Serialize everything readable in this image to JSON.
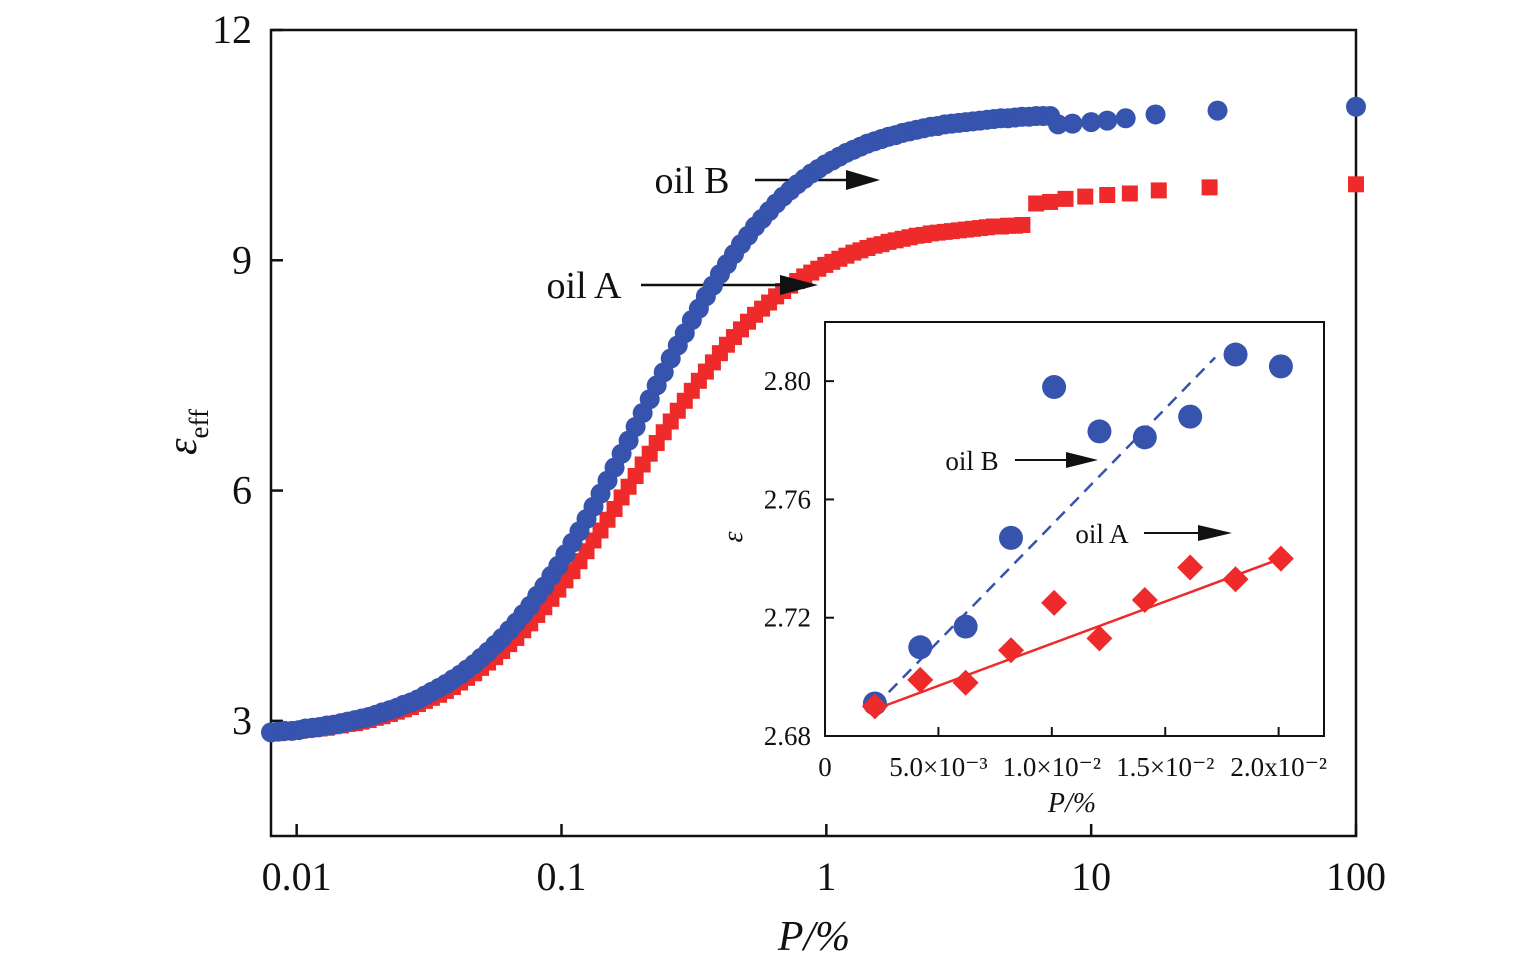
{
  "colors": {
    "oil_A": "#ee2a2a",
    "oil_B": "#3653ad",
    "axis": "#111111"
  },
  "chart_data": [
    {
      "type": "scatter",
      "xscale": "log",
      "xlim": [
        0.008,
        100
      ],
      "ylim": [
        1.5,
        12
      ],
      "xticks": [
        0.01,
        0.1,
        1,
        10,
        100
      ],
      "xtick_labels": [
        "0.01",
        "0.1",
        "1",
        "10",
        "100"
      ],
      "yticks": [
        3,
        6,
        9,
        12
      ],
      "ytick_labels": [
        "3",
        "6",
        "9",
        "12"
      ],
      "xlabel": "P/%",
      "ylabel": "ε",
      "ylabel_sub": "eff",
      "grid": false,
      "series": [
        {
          "name": "oil B",
          "marker": "circle",
          "curve": {
            "eps_low": 2.8,
            "eps_high": 11.0,
            "p_mid": 0.3,
            "steepness": 1.0
          },
          "x": [
            0.008,
            0.0085,
            0.009,
            0.0096,
            0.0102,
            0.0108,
            0.0115,
            0.0122,
            0.013,
            0.0138,
            0.0147,
            0.0156,
            0.0166,
            0.0176,
            0.0187,
            0.0199,
            0.0211,
            0.0225,
            0.0239,
            0.0254,
            0.027,
            0.0287,
            0.0305,
            0.0324,
            0.0345,
            0.0366,
            0.0389,
            0.0414,
            0.044,
            0.0468,
            0.0497,
            0.0528,
            0.0562,
            0.0597,
            0.0635,
            0.0675,
            0.0717,
            0.0762,
            0.081,
            0.0861,
            0.0916,
            0.0973,
            0.1035,
            0.11,
            0.1169,
            0.1243,
            0.1321,
            0.1404,
            0.1492,
            0.1586,
            0.1686,
            0.1792,
            0.1905,
            0.2025,
            0.2153,
            0.2288,
            0.2432,
            0.2585,
            0.2748,
            0.2921,
            0.3105,
            0.3301,
            0.3509,
            0.373,
            0.3965,
            0.4214,
            0.448,
            0.4762,
            0.5062,
            0.5381,
            0.572,
            0.608,
            0.6463,
            0.687,
            0.7303,
            0.7763,
            0.8252,
            0.8772,
            0.9325,
            0.9912,
            1.0537,
            1.12,
            1.1906,
            1.2656,
            1.3453,
            1.4301,
            1.5202,
            1.616,
            1.7178,
            1.826,
            1.941,
            2.0633,
            2.1933,
            2.3315,
            2.4783,
            2.6345,
            2.8005,
            2.9769,
            3.1644,
            3.3638,
            3.5757,
            3.801,
            4.0405,
            4.295,
            4.5656,
            4.8532,
            5.159,
            5.484,
            5.8295,
            6.1967,
            6.5871,
            7.0021,
            7.5,
            8.5,
            10.0,
            11.5,
            13.5,
            17.5,
            30.0,
            100.0
          ],
          "y": [
            2.85,
            2.86,
            2.87,
            2.87,
            2.88,
            2.9,
            2.91,
            2.92,
            2.94,
            2.95,
            2.97,
            2.99,
            3.01,
            3.03,
            3.05,
            3.08,
            3.11,
            3.14,
            3.17,
            3.21,
            3.24,
            3.28,
            3.33,
            3.38,
            3.43,
            3.48,
            3.54,
            3.6,
            3.67,
            3.74,
            3.82,
            3.9,
            3.99,
            4.08,
            4.18,
            4.28,
            4.39,
            4.5,
            4.63,
            4.75,
            4.89,
            5.02,
            5.17,
            5.32,
            5.47,
            5.63,
            5.79,
            5.96,
            6.13,
            6.3,
            6.48,
            6.65,
            6.83,
            7.01,
            7.19,
            7.37,
            7.54,
            7.72,
            7.89,
            8.05,
            8.22,
            8.37,
            8.53,
            8.67,
            8.82,
            8.95,
            9.08,
            9.21,
            9.32,
            9.44,
            9.54,
            9.64,
            9.74,
            9.83,
            9.91,
            9.99,
            10.06,
            10.13,
            10.19,
            10.25,
            10.3,
            10.35,
            10.4,
            10.44,
            10.48,
            10.52,
            10.55,
            10.58,
            10.61,
            10.63,
            10.66,
            10.68,
            10.7,
            10.72,
            10.74,
            10.75,
            10.77,
            10.78,
            10.79,
            10.8,
            10.81,
            10.82,
            10.83,
            10.84,
            10.85,
            10.85,
            10.86,
            10.87,
            10.87,
            10.88,
            10.88,
            10.88,
            10.77,
            10.78,
            10.8,
            10.82,
            10.85,
            10.9,
            10.95,
            11.0
          ]
        },
        {
          "name": "oil A",
          "marker": "square",
          "curve": {
            "eps_low": 2.8,
            "eps_high": 10.0,
            "p_mid": 0.35,
            "steepness": 1.0
          },
          "x": [
            0.0085,
            0.009,
            0.0096,
            0.0102,
            0.0108,
            0.0115,
            0.0122,
            0.013,
            0.0138,
            0.0147,
            0.0156,
            0.0166,
            0.0176,
            0.0187,
            0.0199,
            0.0211,
            0.0225,
            0.0239,
            0.0254,
            0.027,
            0.0287,
            0.0305,
            0.0324,
            0.0345,
            0.0366,
            0.0389,
            0.0414,
            0.044,
            0.0468,
            0.0497,
            0.0528,
            0.0562,
            0.0597,
            0.0635,
            0.0675,
            0.0717,
            0.0762,
            0.081,
            0.0861,
            0.0916,
            0.0973,
            0.1035,
            0.11,
            0.1169,
            0.1243,
            0.1321,
            0.1404,
            0.1492,
            0.1586,
            0.1686,
            0.1792,
            0.1905,
            0.2025,
            0.2153,
            0.2288,
            0.2432,
            0.2585,
            0.2748,
            0.2921,
            0.3105,
            0.3301,
            0.3509,
            0.373,
            0.3965,
            0.4214,
            0.448,
            0.4762,
            0.5062,
            0.5381,
            0.572,
            0.608,
            0.6463,
            0.687,
            0.7303,
            0.7763,
            0.8252,
            0.8772,
            0.9325,
            0.9912,
            1.0537,
            1.12,
            1.1906,
            1.2656,
            1.3453,
            1.4301,
            1.5202,
            1.616,
            1.7178,
            1.826,
            1.941,
            2.0633,
            2.1933,
            2.3315,
            2.4783,
            2.6345,
            2.8005,
            2.9769,
            3.1644,
            3.3638,
            3.5757,
            3.801,
            4.0405,
            4.295,
            4.5656,
            4.8532,
            5.159,
            5.5,
            6.2,
            7.0,
            8.0,
            9.5,
            11.5,
            14.0,
            18.0,
            28.0,
            100.0
          ],
          "y": [
            2.84,
            2.85,
            2.86,
            2.87,
            2.88,
            2.89,
            2.9,
            2.91,
            2.93,
            2.94,
            2.96,
            2.97,
            2.99,
            3.01,
            3.04,
            3.06,
            3.09,
            3.12,
            3.15,
            3.18,
            3.22,
            3.26,
            3.3,
            3.34,
            3.39,
            3.44,
            3.5,
            3.56,
            3.62,
            3.69,
            3.76,
            3.83,
            3.91,
            4.0,
            4.08,
            4.18,
            4.27,
            4.38,
            4.48,
            4.59,
            4.71,
            4.83,
            4.95,
            5.08,
            5.21,
            5.35,
            5.48,
            5.62,
            5.76,
            5.91,
            6.05,
            6.19,
            6.34,
            6.48,
            6.62,
            6.76,
            6.9,
            7.04,
            7.17,
            7.3,
            7.43,
            7.55,
            7.67,
            7.79,
            7.9,
            8.0,
            8.1,
            8.2,
            8.29,
            8.37,
            8.45,
            8.53,
            8.6,
            8.67,
            8.73,
            8.79,
            8.84,
            8.89,
            8.94,
            8.98,
            9.02,
            9.06,
            9.1,
            9.13,
            9.16,
            9.19,
            9.21,
            9.24,
            9.26,
            9.28,
            9.3,
            9.32,
            9.33,
            9.35,
            9.36,
            9.37,
            9.38,
            9.39,
            9.4,
            9.41,
            9.42,
            9.43,
            9.44,
            9.44,
            9.45,
            9.45,
            9.46,
            9.74,
            9.76,
            9.8,
            9.83,
            9.85,
            9.87,
            9.91,
            9.95,
            9.99
          ]
        }
      ],
      "annotations": [
        {
          "text": "oil B",
          "series": "oil B"
        },
        {
          "text": "oil A",
          "series": "oil A"
        }
      ]
    },
    {
      "type": "scatter",
      "inset": true,
      "xlim": [
        0,
        0.022
      ],
      "ylim": [
        2.68,
        2.82
      ],
      "xticks": [
        0,
        0.005,
        0.01,
        0.015,
        0.02
      ],
      "xtick_labels": [
        "0",
        "5.0×10⁻³",
        "1.0×10⁻²",
        "1.5×10⁻²",
        "2.0x10⁻²"
      ],
      "yticks": [
        2.68,
        2.72,
        2.76,
        2.8
      ],
      "ytick_labels": [
        "2.68",
        "2.72",
        "2.76",
        "2.80"
      ],
      "xlabel": "P/%",
      "ylabel": "ε",
      "grid": false,
      "series": [
        {
          "name": "oil B",
          "marker": "circle",
          "x": [
            0.0022,
            0.0042,
            0.0062,
            0.0082,
            0.0101,
            0.0121,
            0.0141,
            0.0161,
            0.0181,
            0.0201
          ],
          "y": [
            2.691,
            2.71,
            2.717,
            2.747,
            2.798,
            2.783,
            2.781,
            2.788,
            2.809,
            2.805
          ],
          "fit": {
            "style": "dashed",
            "x": [
              0.0022,
              0.0172
            ],
            "y": [
              2.69,
              2.808
            ]
          }
        },
        {
          "name": "oil A",
          "marker": "diamond",
          "x": [
            0.0022,
            0.0042,
            0.0062,
            0.0082,
            0.0101,
            0.0121,
            0.0141,
            0.0161,
            0.0181,
            0.0201
          ],
          "y": [
            2.69,
            2.699,
            2.698,
            2.709,
            2.725,
            2.713,
            2.726,
            2.737,
            2.733,
            2.74
          ],
          "fit": {
            "style": "solid",
            "x": [
              0.0022,
              0.0201
            ],
            "y": [
              2.689,
              2.74
            ]
          }
        }
      ],
      "annotations": [
        {
          "text": "oil B",
          "series": "oil B"
        },
        {
          "text": "oil A",
          "series": "oil A"
        }
      ]
    }
  ]
}
